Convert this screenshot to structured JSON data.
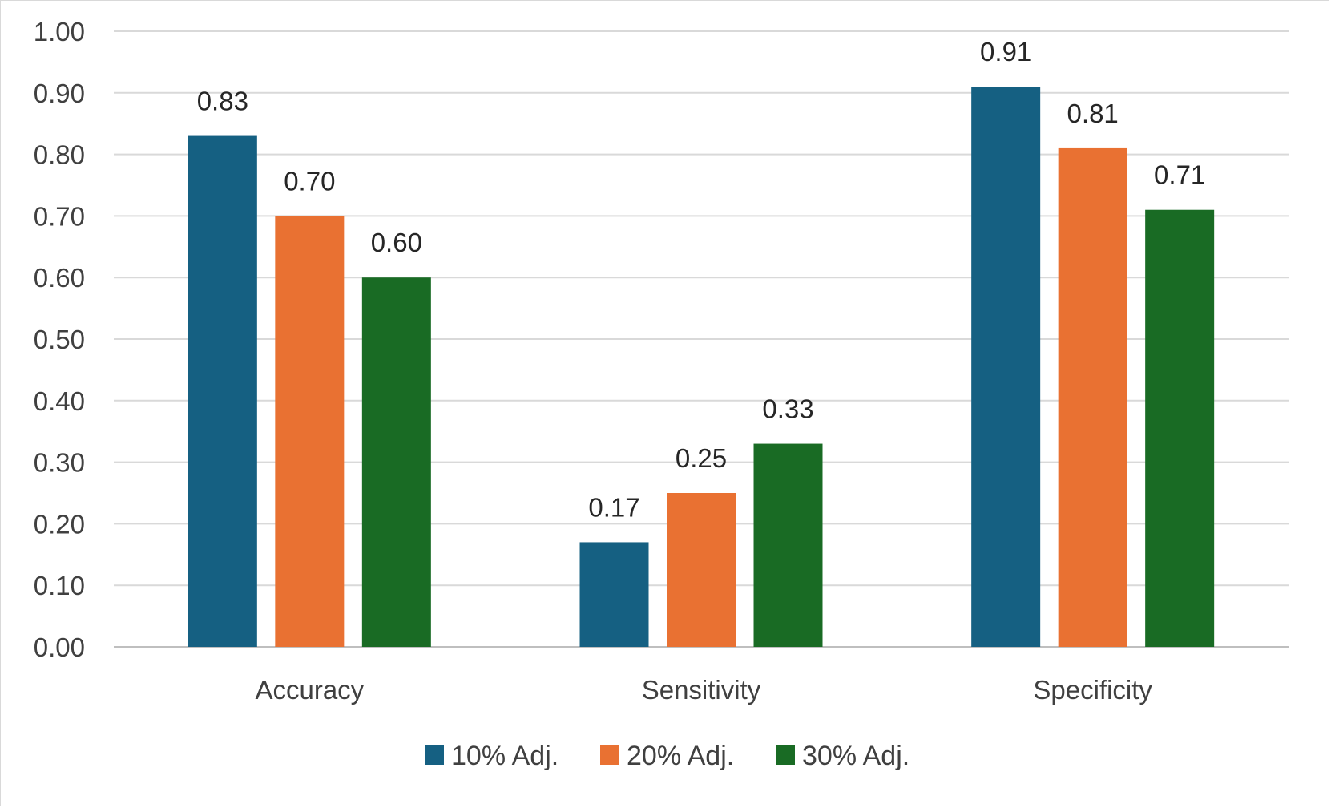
{
  "chart_data": {
    "type": "bar",
    "title": "",
    "xlabel": "",
    "ylabel": "",
    "categories": [
      "Accuracy",
      "Sensitivity",
      "Specificity"
    ],
    "series": [
      {
        "name": "10% Adj.",
        "color": "#156082",
        "values": [
          0.83,
          0.17,
          0.91
        ],
        "labels": [
          "0.83",
          "0.17",
          "0.91"
        ]
      },
      {
        "name": "20% Adj.",
        "color": "#E97132",
        "values": [
          0.7,
          0.25,
          0.81
        ],
        "labels": [
          "0.70",
          "0.25",
          "0.81"
        ]
      },
      {
        "name": "30% Adj.",
        "color": "#196B24",
        "values": [
          0.6,
          0.33,
          0.71
        ],
        "labels": [
          "0.60",
          "0.33",
          "0.71"
        ]
      }
    ],
    "ylim": [
      0,
      1.0
    ],
    "yticks": [
      0.0,
      0.1,
      0.2,
      0.3,
      0.4,
      0.5,
      0.6,
      0.7,
      0.8,
      0.9,
      1.0
    ],
    "ytick_labels": [
      "0.00",
      "0.10",
      "0.20",
      "0.30",
      "0.40",
      "0.50",
      "0.60",
      "0.70",
      "0.80",
      "0.90",
      "1.00"
    ],
    "grid": true,
    "legend_position": "bottom-center"
  }
}
